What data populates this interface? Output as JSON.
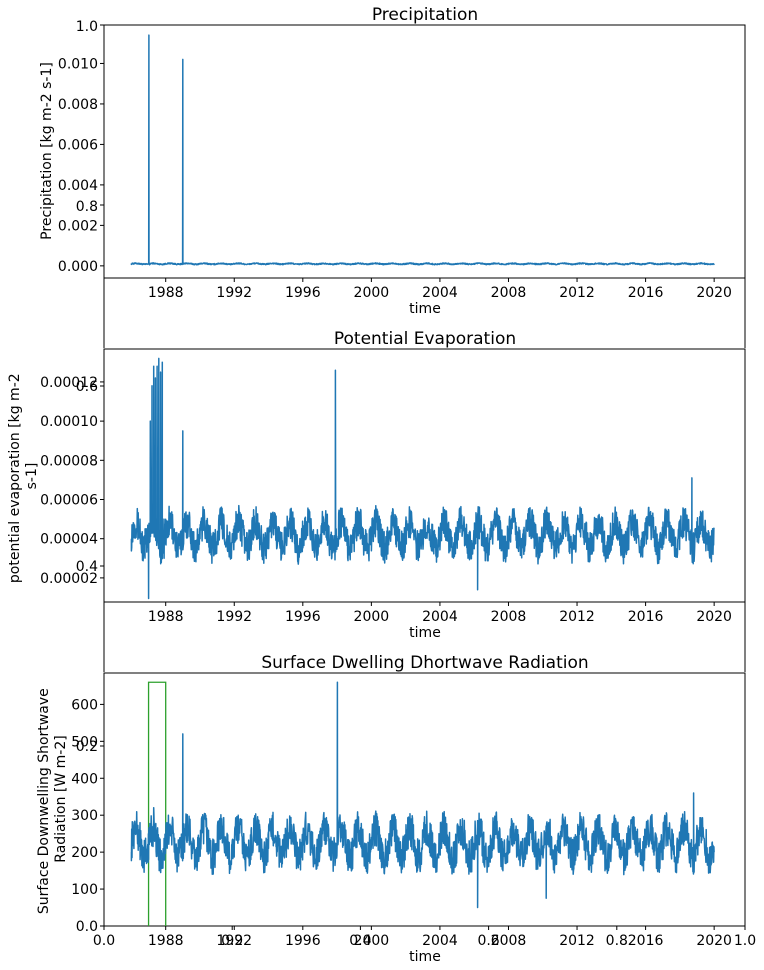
{
  "figure": {
    "background": "#ffffff",
    "line_color": "#1f77b4",
    "overlay_line_color": "#2ca02c"
  },
  "chart_data": [
    {
      "type": "line",
      "title": "Precipitation",
      "xlabel": "time",
      "ylabel": "Precipitation [kg m-2 s-1]",
      "x_ticks": [
        "1988",
        "1992",
        "1996",
        "2000",
        "2004",
        "2008",
        "2012",
        "2016",
        "2020"
      ],
      "y_ticks": [
        "0.000",
        "0.002",
        "0.004",
        "0.006",
        "0.008",
        "0.010"
      ],
      "overlay_y_ticks": [
        "0.8",
        "1.0"
      ],
      "xlim": [
        1984.4,
        2021.8
      ],
      "ylim": [
        -0.0006,
        0.0119
      ],
      "series": [
        {
          "x": [
            1986.0,
            1986.5,
            1987.0,
            1987.02,
            1987.04,
            1987.06,
            1987.5,
            1988.5,
            1988.98,
            1989.0,
            1989.02,
            1989.5,
            1990.0,
            1992.0,
            1994.0,
            1996.0,
            1998.0,
            2000.0,
            2002.0,
            2004.0,
            2006.0,
            2008.0,
            2010.0,
            2012.0,
            2014.0,
            2016.0,
            2018.0,
            2020.0
          ],
          "y": [
            0.00012,
            8e-05,
            0.0001,
            0.0114,
            0.0001,
            5e-05,
            0.0001,
            9e-05,
            0.0001,
            0.0102,
            0.0001,
            0.00011,
            0.00012,
            0.0001,
            0.00011,
            0.00012,
            0.0001,
            0.00012,
            0.0001,
            0.00011,
            0.00012,
            0.0001,
            0.00013,
            0.00011,
            0.00012,
            0.00011,
            0.00012,
            0.0001
          ]
        }
      ],
      "band": {
        "center": 0.0001,
        "amplitude": 4e-05
      },
      "grid": false
    },
    {
      "type": "line",
      "title": "Potential Evaporation",
      "xlabel": "time",
      "ylabel": "potential evaporation [kg m-2 s-1]",
      "x_ticks": [
        "1988",
        "1992",
        "1996",
        "2000",
        "2004",
        "2008",
        "2012",
        "2016",
        "2020"
      ],
      "y_ticks": [
        "0.00002",
        "0.00004",
        "0.00006",
        "0.00008",
        "0.00010",
        "0.00012"
      ],
      "overlay_y_ticks": [
        "0.4",
        "0.6"
      ],
      "xlim": [
        1984.4,
        2021.8
      ],
      "ylim": [
        7.7e-06,
        0.0001368
      ],
      "series": [
        {
          "x": [
            1986.0,
            1986.5,
            1986.8,
            1987.0,
            1987.05,
            1987.1,
            1987.2,
            1987.3,
            1987.4,
            1987.5,
            1987.6,
            1987.7,
            1987.8,
            1987.9,
            1988.0,
            1988.2,
            1988.5,
            1988.8,
            1989.0,
            1989.05,
            1989.1,
            1989.5,
            1990.0,
            1992.0,
            1994.0,
            1996.0,
            1997.5,
            1997.9,
            1997.95,
            1998.0,
            1998.5,
            2000.0,
            2002.0,
            2004.0,
            2006.2,
            2006.3,
            2008.0,
            2010.0,
            2012.0,
            2014.0,
            2016.0,
            2018.7,
            2018.8,
            2020.0
          ],
          "y": [
            4e-05,
            5e-05,
            4.5e-05,
            9.5e-06,
            4.5e-05,
            0.0001,
            0.000118,
            0.000128,
            0.000122,
            0.000128,
            0.000132,
            0.000125,
            0.00013,
            5e-05,
            4.5e-05,
            4.2e-05,
            4.5e-05,
            3.8e-05,
            9.5e-05,
            4e-05,
            5e-05,
            4.5e-05,
            4e-05,
            4.5e-05,
            4e-05,
            4.5e-05,
            4e-05,
            0.000126,
            4.5e-05,
            4e-05,
            4.5e-05,
            4e-05,
            4.5e-05,
            4e-05,
            1.4e-05,
            4e-05,
            4.5e-05,
            4e-05,
            4.5e-05,
            4e-05,
            4.5e-05,
            7.1e-05,
            4e-05,
            4.5e-05
          ]
        }
      ],
      "band": {
        "center": 4.2e-05,
        "amplitude": 1.2e-05
      },
      "grid": false
    },
    {
      "type": "line",
      "title": "Surface Dwelling Dhortwave Radiation",
      "xlabel": "time",
      "ylabel": "Surface Downwelling Shortwave Radiation [W m-2]",
      "x_ticks": [
        "1988",
        "1992",
        "1996",
        "2000",
        "2004",
        "2008",
        "2012",
        "2016",
        "2020"
      ],
      "y_ticks": [
        "0.0",
        "100",
        "200",
        "300",
        "400",
        "500",
        "600"
      ],
      "overlay_x_ticks": [
        "0.0",
        "0.2",
        "0.4",
        "0.6",
        "0.8",
        "1.0"
      ],
      "overlay_y_ticks": [
        "0.2"
      ],
      "xlim": [
        1984.4,
        2021.8
      ],
      "ylim": [
        0,
        685
      ],
      "series": [
        {
          "x": [
            1986.0,
            1986.5,
            1987.0,
            1987.3,
            1987.5,
            1988.0,
            1988.5,
            1989.0,
            1989.05,
            1989.1,
            1990.0,
            1992.0,
            1994.0,
            1996.0,
            1998.0,
            1998.02,
            1998.05,
            1998.5,
            2000.0,
            2002.0,
            2004.0,
            2006.2,
            2006.3,
            2008.0,
            2010.2,
            2010.3,
            2012.0,
            2014.0,
            2016.0,
            2018.8,
            2018.9,
            2020.0
          ],
          "y": [
            200,
            280,
            180,
            320,
            250,
            220,
            200,
            520,
            210,
            200,
            230,
            220,
            210,
            240,
            220,
            660,
            220,
            230,
            220,
            210,
            220,
            50,
            220,
            230,
            75,
            220,
            230,
            220,
            230,
            360,
            220,
            200
          ]
        }
      ],
      "band": {
        "center": 225,
        "amplitude": 70
      },
      "overlay_step": {
        "x": [
          1987.0,
          1987.0,
          1988.0,
          1988.0
        ],
        "y": [
          0,
          660,
          660,
          0
        ]
      },
      "grid": false
    }
  ]
}
